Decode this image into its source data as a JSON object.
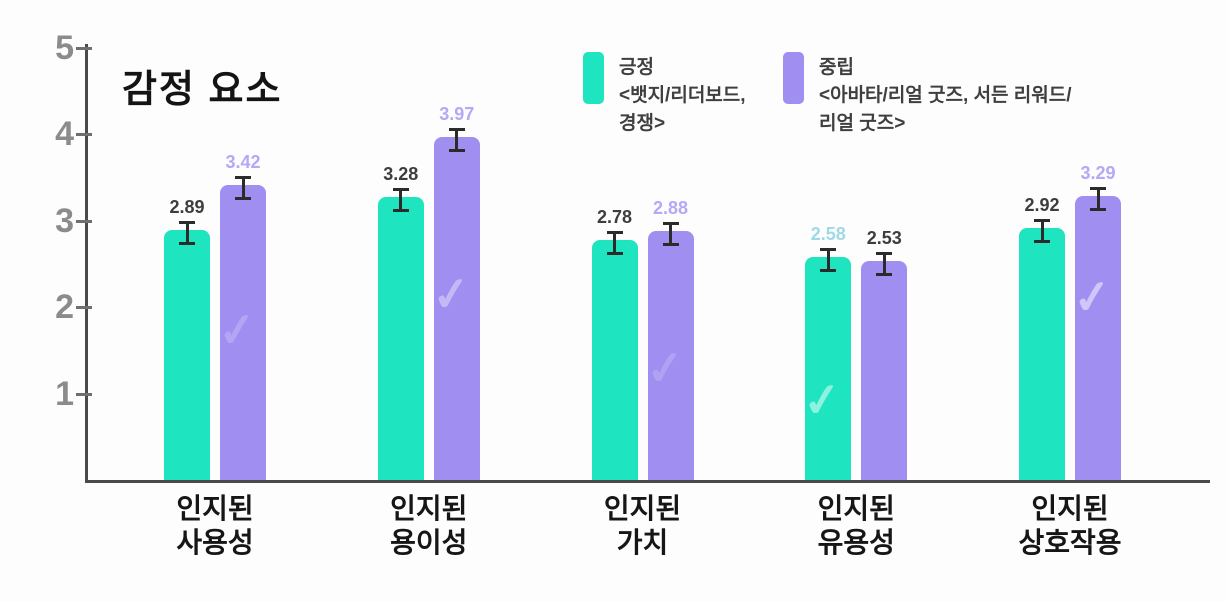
{
  "chart_data": {
    "type": "bar",
    "title": "감정 요소",
    "categories": [
      [
        "인지된",
        "사용성"
      ],
      [
        "인지된",
        "용이성"
      ],
      [
        "인지된",
        "가치"
      ],
      [
        "인지된",
        "유용성"
      ],
      [
        "인지된",
        "상호작용"
      ]
    ],
    "yticks": [
      1,
      2,
      3,
      4,
      5
    ],
    "ylim": [
      0,
      5
    ],
    "grid": false,
    "legend_position": "top",
    "error_bars": true,
    "axis_color": "#4a4a4a",
    "tick_label_color": "#8b8b8b",
    "series": [
      {
        "name": "긍정",
        "legend_lines": [
          "긍정",
          "<뱃지/리더보드,",
          "경쟁>"
        ],
        "color": "#1ee4bf",
        "values": [
          2.89,
          3.28,
          2.78,
          2.58,
          2.92
        ],
        "label_colors": [
          "#3d3d3d",
          "#3d3d3d",
          "#3d3d3d",
          "#9fd9e8",
          "#3d3d3d"
        ]
      },
      {
        "name": "중립",
        "legend_lines": [
          "중립",
          "<아바타/리얼 굿즈, 서든 리워드/",
          "리얼 굿즈>"
        ],
        "color": "#a08ff1",
        "values": [
          3.42,
          3.97,
          2.88,
          2.53,
          3.29
        ],
        "label_colors": [
          "#b5a8f6",
          "#b5a8f6",
          "#b5a8f6",
          "#3d3d3d",
          "#b5a8f6"
        ]
      }
    ],
    "watermarks": [
      {
        "series": 1,
        "category": 0,
        "glyph": "✓",
        "opacity": 0.2,
        "top_pct": 40
      },
      {
        "series": 1,
        "category": 1,
        "glyph": "✓",
        "opacity": 0.38,
        "top_pct": 38
      },
      {
        "series": 1,
        "category": 2,
        "glyph": "✓",
        "opacity": 0.16,
        "top_pct": 44
      },
      {
        "series": 0,
        "category": 3,
        "glyph": "✓",
        "opacity": 0.5,
        "top_pct": 52
      },
      {
        "series": 1,
        "category": 4,
        "glyph": "✓",
        "opacity": 0.5,
        "top_pct": 26
      }
    ]
  }
}
